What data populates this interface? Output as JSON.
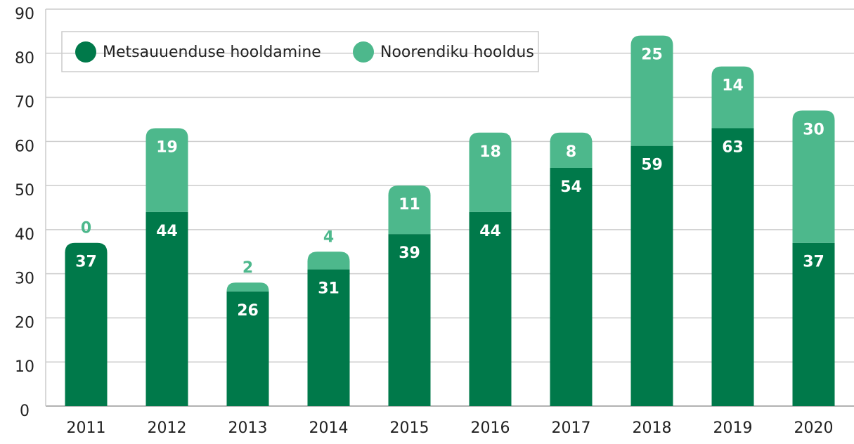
{
  "chart_data": {
    "type": "stacked_bar",
    "categories": [
      "2011",
      "2012",
      "2013",
      "2014",
      "2015",
      "2016",
      "2017",
      "2018",
      "2019",
      "2020"
    ],
    "series": [
      {
        "name": "Metsauuenduse hooldamine",
        "color": "#00794a",
        "values": [
          37,
          44,
          26,
          31,
          39,
          44,
          54,
          59,
          63,
          37
        ]
      },
      {
        "name": "Noorendiku hooldus",
        "color": "#4db88c",
        "values": [
          0,
          19,
          2,
          4,
          11,
          18,
          8,
          25,
          14,
          30
        ]
      }
    ],
    "ylim": [
      0,
      90
    ],
    "yticks": [
      0,
      10,
      20,
      30,
      40,
      50,
      60,
      70,
      80,
      90
    ],
    "grid": true,
    "legend": "top-left"
  }
}
